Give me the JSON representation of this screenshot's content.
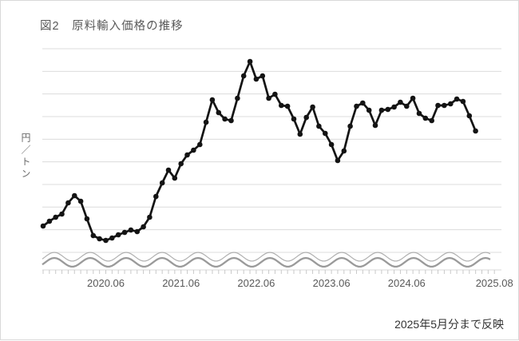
{
  "header": {
    "title": "図2　原料輸入価格の推移"
  },
  "footer": {
    "note": "2025年5月分まで反映"
  },
  "colors": {
    "series": "#141414",
    "grid": "#dcdcdc",
    "axis": "#d9d9d9",
    "tick": "#c9c9c9",
    "tick_label": "#595959",
    "wave_upper": "#b0b0b0",
    "wave_lower": "#9a9a9a",
    "title_text": "#595959",
    "note_text": "#333333"
  },
  "chart_data": {
    "type": "line",
    "title": "図2　原料輸入価格の推移",
    "ylabel": "円／トン",
    "xlabel": "",
    "legend": "none",
    "grid": "horizontal gridlines only, 10 lines",
    "y_axis_numeric_labels": "none (wavy axis-break lines at bottom indicate truncated scale)",
    "values_unit": "relative level (source chart shows no numeric y ticks); higher = higher price",
    "x_tick_labels": [
      "2020.06",
      "2021.06",
      "2022.06",
      "2023.06",
      "2024.06",
      "2025.08"
    ],
    "x_tick_label_month_index": [
      10,
      22,
      34,
      46,
      58,
      72
    ],
    "months": [
      "2019.08",
      "2019.09",
      "2019.10",
      "2019.11",
      "2019.12",
      "2020.01",
      "2020.02",
      "2020.03",
      "2020.04",
      "2020.05",
      "2020.06",
      "2020.07",
      "2020.08",
      "2020.09",
      "2020.10",
      "2020.11",
      "2020.12",
      "2021.01",
      "2021.02",
      "2021.03",
      "2021.04",
      "2021.05",
      "2021.06",
      "2021.07",
      "2021.08",
      "2021.09",
      "2021.10",
      "2021.11",
      "2021.12",
      "2022.01",
      "2022.02",
      "2022.03",
      "2022.04",
      "2022.05",
      "2022.06",
      "2022.07",
      "2022.08",
      "2022.09",
      "2022.10",
      "2022.11",
      "2022.12",
      "2023.01",
      "2023.02",
      "2023.03",
      "2023.04",
      "2023.05",
      "2023.06",
      "2023.07",
      "2023.08",
      "2023.09",
      "2023.10",
      "2023.11",
      "2023.12",
      "2024.01",
      "2024.02",
      "2024.03",
      "2024.04",
      "2024.05",
      "2024.06",
      "2024.07",
      "2024.08",
      "2024.09",
      "2024.10",
      "2024.11",
      "2024.12",
      "2025.01",
      "2025.02",
      "2025.03",
      "2025.04",
      "2025.05"
    ],
    "values": [
      55,
      61,
      66,
      70,
      84,
      93,
      86,
      64,
      43,
      39,
      37,
      40,
      44,
      47,
      50,
      48,
      54,
      66,
      92,
      109,
      125,
      115,
      133,
      144,
      150,
      157,
      185,
      213,
      197,
      189,
      187,
      215,
      243,
      261,
      239,
      243,
      215,
      220,
      206,
      205,
      189,
      170,
      191,
      204,
      180,
      171,
      157,
      137,
      149,
      180,
      205,
      209,
      200,
      181,
      200,
      201,
      204,
      210,
      205,
      215,
      196,
      190,
      187,
      206,
      206,
      208,
      214,
      211,
      193,
      174
    ],
    "axis_break_wave": true,
    "marker": "filled circle",
    "series_color": "#141414"
  }
}
